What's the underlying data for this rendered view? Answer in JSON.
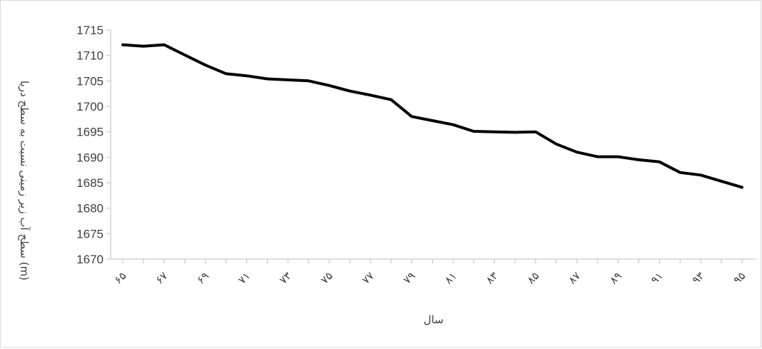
{
  "chart_data": {
    "type": "line",
    "title": "",
    "xlabel": "سال",
    "ylabel": "سطح آب زیر زمینی نسبت به سطح دریا (m)",
    "ylim": [
      1670,
      1715
    ],
    "ytick_step": 5,
    "grid": false,
    "legend": "none",
    "line_color": "#000000",
    "x_tick_labels": [
      "۶۵",
      "۶۷",
      "۶۹",
      "۷۱",
      "۷۳",
      "۷۵",
      "۷۷",
      "۷۹",
      "۸۱",
      "۸۳",
      "۸۵",
      "۸۷",
      "۸۹",
      "۹۱",
      "۹۳",
      "۹۵"
    ],
    "x": [
      "۶۵",
      "۶۶",
      "۶۷",
      "۶۸",
      "۶۹",
      "۷۰",
      "۷۱",
      "۷۲",
      "۷۳",
      "۷۴",
      "۷۵",
      "۷۶",
      "۷۷",
      "۷۸",
      "۷۹",
      "۸۰",
      "۸۱",
      "۸۲",
      "۸۳",
      "۸۴",
      "۸۵",
      "۸۶",
      "۸۷",
      "۸۸",
      "۸۹",
      "۹۰",
      "۹۱",
      "۹۲",
      "۹۳",
      "۹۴",
      "۹۵"
    ],
    "series": [
      {
        "values": [
          1712.1,
          1711.8,
          1712.1,
          1710.1,
          1708.1,
          1706.4,
          1706.0,
          1705.4,
          1705.2,
          1705.0,
          1704.1,
          1703.0,
          1702.2,
          1701.3,
          1698.0,
          1697.2,
          1696.4,
          1695.1,
          1695.0,
          1694.9,
          1695.0,
          1692.6,
          1691.0,
          1690.1,
          1690.1,
          1689.5,
          1689.1,
          1687.0,
          1686.5,
          1685.3,
          1684.1
        ]
      }
    ]
  }
}
